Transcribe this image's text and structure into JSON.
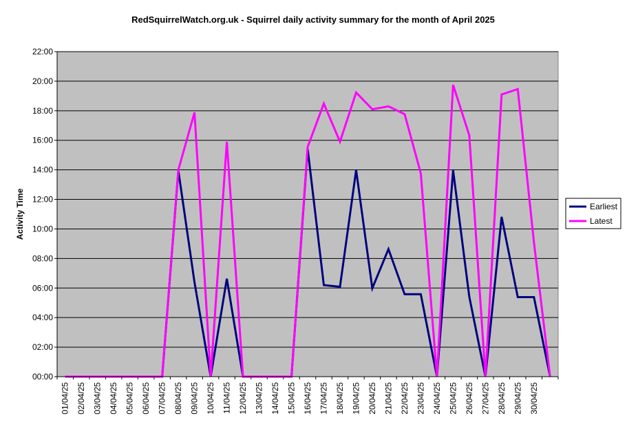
{
  "chart_data": {
    "type": "line",
    "title": "RedSquirrelWatch.org.uk - Squirrel daily activity summary for the month of April 2025",
    "xlabel": "",
    "ylabel": "Activity Time",
    "ylim": [
      "00:00",
      "22:00"
    ],
    "y_ticks": [
      "00:00",
      "02:00",
      "04:00",
      "06:00",
      "08:00",
      "10:00",
      "12:00",
      "14:00",
      "16:00",
      "18:00",
      "20:00",
      "22:00"
    ],
    "categories": [
      "01/04/25",
      "02/04/25",
      "03/04/25",
      "04/04/25",
      "05/04/25",
      "06/04/25",
      "07/04/25",
      "08/04/25",
      "09/04/25",
      "10/04/25",
      "11/04/25",
      "12/04/25",
      "13/04/25",
      "14/04/25",
      "15/04/25",
      "16/04/25",
      "17/04/25",
      "18/04/25",
      "19/04/25",
      "20/04/25",
      "21/04/25",
      "22/04/25",
      "23/04/25",
      "24/04/25",
      "25/04/25",
      "26/04/25",
      "27/04/25",
      "28/04/25",
      "29/04/25",
      "30/04/25",
      ""
    ],
    "series": [
      {
        "name": "Earliest",
        "color": "#000080",
        "values": [
          "00:00",
          "00:00",
          "00:00",
          "00:00",
          "00:00",
          "00:00",
          "00:00",
          "13:57",
          "06:23",
          "00:00",
          "06:38",
          "00:00",
          "00:00",
          "00:00",
          "00:00",
          "15:25",
          "06:12",
          "06:05",
          "13:59",
          "05:59",
          "08:38",
          "05:35",
          "05:35",
          "00:00",
          "13:58",
          "05:25",
          "00:00",
          "10:49",
          "05:23",
          "05:23",
          "00:00"
        ]
      },
      {
        "name": "Latest",
        "color": "#ff00ff",
        "values": [
          "00:00",
          "00:00",
          "00:00",
          "00:00",
          "00:00",
          "00:00",
          "00:00",
          "14:00",
          "17:53",
          "00:00",
          "15:54",
          "00:00",
          "00:00",
          "00:00",
          "00:00",
          "15:33",
          "18:29",
          "15:54",
          "19:14",
          "18:06",
          "18:18",
          "17:46",
          "13:46",
          "00:00",
          "19:45",
          "16:20",
          "00:00",
          "19:06",
          "19:28",
          "09:06",
          "00:00"
        ]
      }
    ],
    "grid": true,
    "legend_position": "right"
  }
}
